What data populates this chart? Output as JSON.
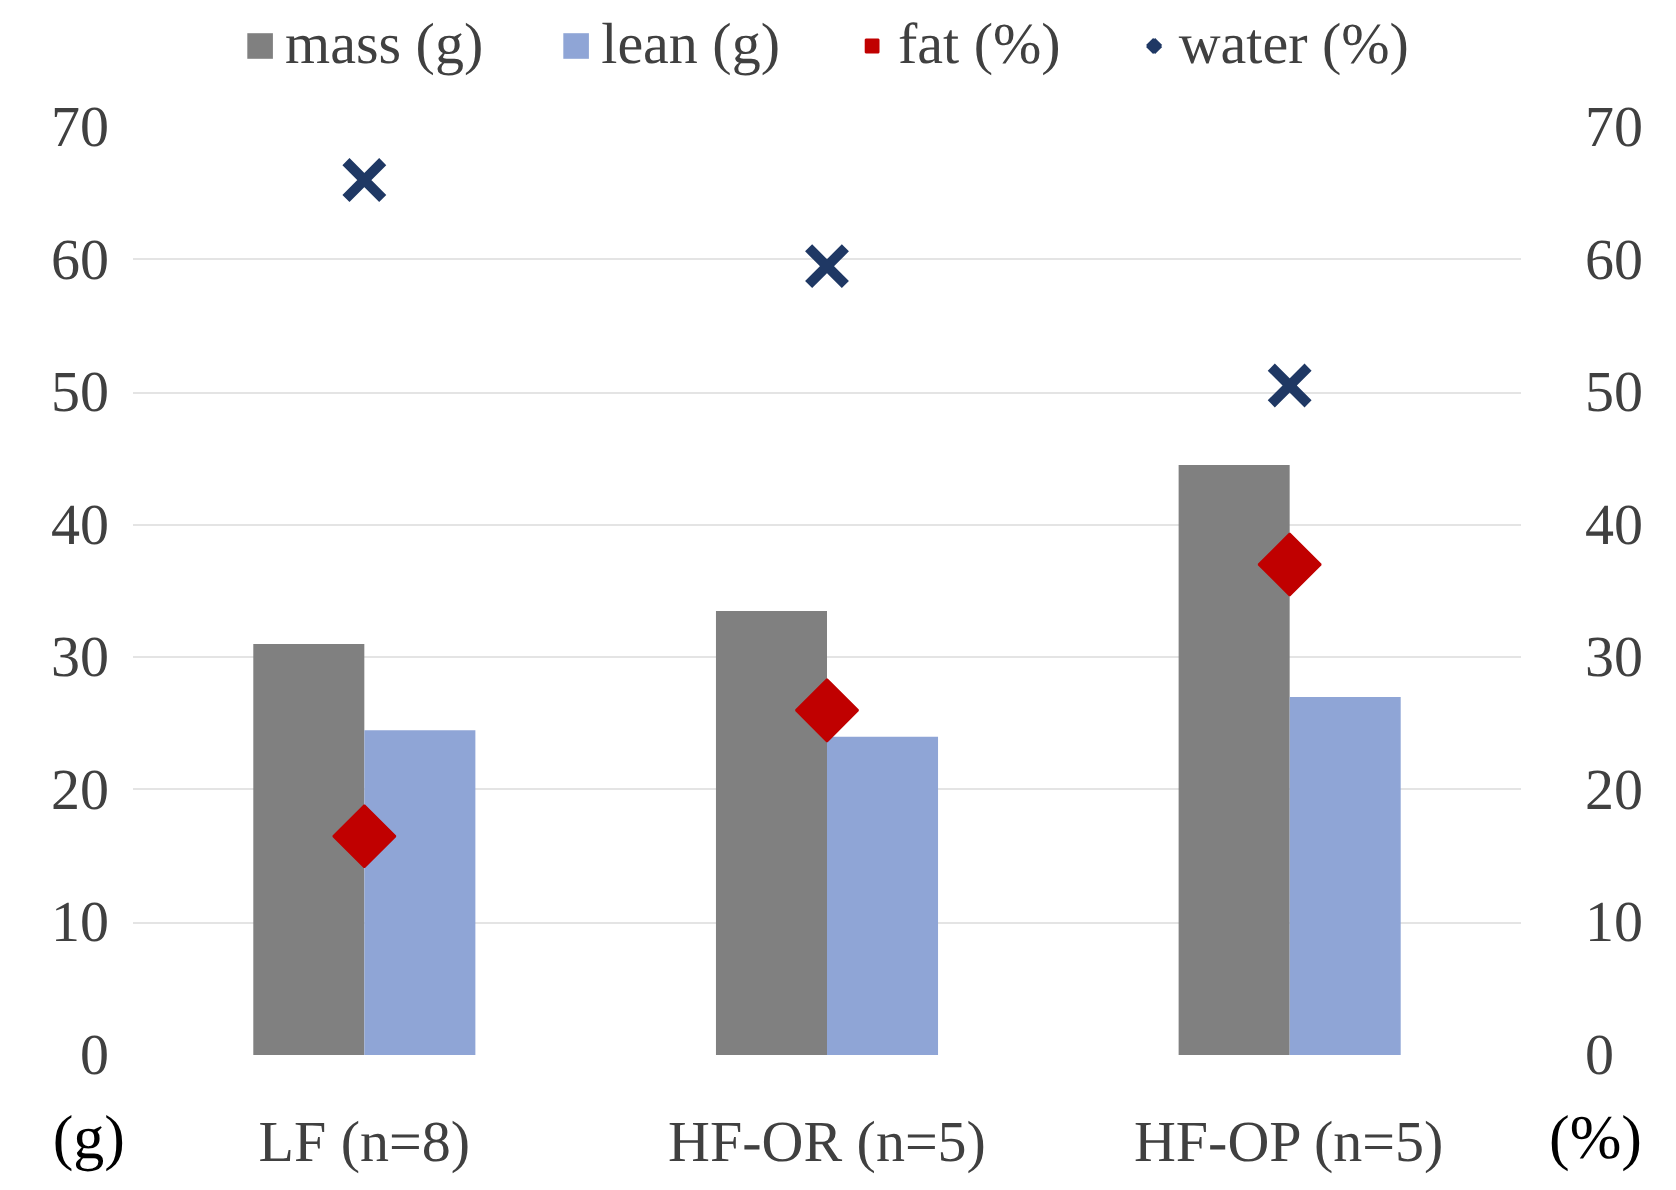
{
  "chart_data": {
    "type": "bar",
    "categories": [
      "LF (n=8)",
      "HF-OR (n=5)",
      "HF-OP (n=5)"
    ],
    "ylabel": "(g)",
    "y2label": "(%)",
    "ylim": [
      0,
      70
    ],
    "yticks": [
      0,
      10,
      20,
      30,
      40,
      50,
      60,
      70
    ],
    "y2lim": [
      0,
      70
    ],
    "y2ticks": [
      0,
      10,
      20,
      30,
      40,
      50,
      60,
      70
    ],
    "grid": "y",
    "legend": "top",
    "series": [
      {
        "name": "mass (g)",
        "color": "#808080",
        "values": [
          31,
          33.5,
          44.5
        ]
      },
      {
        "name": "lean (g)",
        "color": "#8fa5d6",
        "values": [
          24.5,
          24,
          27
        ]
      },
      {
        "name": "fat (%)",
        "type": "scatter",
        "marker": "diamond",
        "axis": "y2",
        "color": "#c00000",
        "values": [
          16.5,
          26,
          37
        ]
      },
      {
        "name": "water (%)",
        "type": "scatter",
        "marker": "cross",
        "axis": "y2",
        "color": "#1f3864",
        "values": [
          66,
          59.5,
          50.5
        ]
      }
    ]
  }
}
